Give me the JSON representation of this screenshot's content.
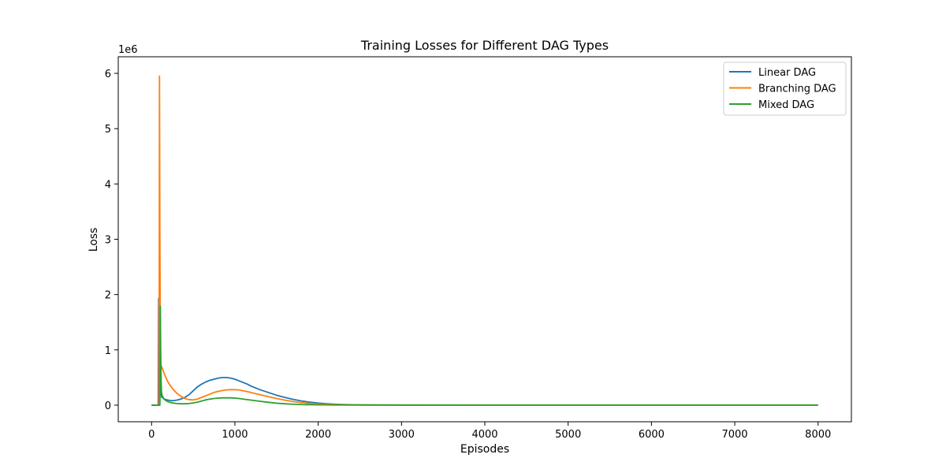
{
  "chart_data": {
    "type": "line",
    "title": "Training Losses for Different DAG Types",
    "xlabel": "Episodes",
    "ylabel": "Loss",
    "y_offset_label": "1e6",
    "y_scale_factor": 1000000,
    "xlim": [
      -400,
      8400
    ],
    "ylim": [
      -300000,
      6300000
    ],
    "xticks": [
      0,
      1000,
      2000,
      3000,
      4000,
      5000,
      6000,
      7000,
      8000
    ],
    "yticks": [
      0,
      1000000,
      2000000,
      3000000,
      4000000,
      5000000,
      6000000
    ],
    "ytick_labels": [
      "0",
      "1",
      "2",
      "3",
      "4",
      "5",
      "6"
    ],
    "grid": false,
    "legend_position": "top-right",
    "series": [
      {
        "name": "Linear DAG",
        "color": "#1f77b4",
        "x": [
          0,
          80,
          85,
          90,
          95,
          100,
          120,
          150,
          200,
          250,
          300,
          350,
          400,
          450,
          500,
          550,
          600,
          650,
          700,
          750,
          800,
          850,
          900,
          950,
          1000,
          1050,
          1100,
          1150,
          1200,
          1300,
          1400,
          1500,
          1600,
          1700,
          1800,
          1900,
          2000,
          2100,
          2200,
          2300,
          2500,
          2700,
          3000,
          4000,
          5000,
          6000,
          7000,
          8000
        ],
        "y": [
          0,
          0,
          1930000,
          1500000,
          800000,
          300000,
          150000,
          110000,
          90000,
          80000,
          90000,
          110000,
          140000,
          190000,
          260000,
          330000,
          380000,
          420000,
          450000,
          470000,
          490000,
          500000,
          500000,
          490000,
          470000,
          440000,
          410000,
          380000,
          340000,
          280000,
          230000,
          180000,
          140000,
          105000,
          75000,
          55000,
          38000,
          26000,
          17000,
          11000,
          5000,
          3000,
          2000,
          1000,
          1000,
          1000,
          1000,
          1000
        ]
      },
      {
        "name": "Branching DAG",
        "color": "#ff7f0e",
        "x": [
          0,
          90,
          95,
          100,
          105,
          110,
          120,
          140,
          160,
          180,
          200,
          250,
          300,
          350,
          400,
          450,
          500,
          550,
          600,
          650,
          700,
          750,
          800,
          850,
          900,
          950,
          1000,
          1050,
          1100,
          1150,
          1200,
          1300,
          1400,
          1500,
          1600,
          1700,
          1800,
          1900,
          2000,
          2200,
          2400,
          2600,
          3000,
          4000,
          5000,
          6000,
          7000,
          8000
        ],
        "y": [
          0,
          0,
          5950000,
          3000000,
          1200000,
          700000,
          700000,
          620000,
          540000,
          470000,
          410000,
          300000,
          220000,
          160000,
          120000,
          100000,
          95000,
          110000,
          140000,
          170000,
          200000,
          230000,
          250000,
          265000,
          275000,
          280000,
          280000,
          275000,
          260000,
          245000,
          225000,
          190000,
          155000,
          120000,
          90000,
          65000,
          45000,
          30000,
          20000,
          10000,
          6000,
          4000,
          3000,
          2000,
          2000,
          2000,
          2000,
          2000
        ]
      },
      {
        "name": "Mixed DAG",
        "color": "#2ca02c",
        "x": [
          0,
          100,
          105,
          110,
          115,
          120,
          130,
          150,
          175,
          200,
          250,
          300,
          350,
          400,
          450,
          500,
          550,
          600,
          650,
          700,
          750,
          800,
          850,
          900,
          950,
          1000,
          1050,
          1100,
          1200,
          1300,
          1400,
          1500,
          1600,
          1700,
          1800,
          2000,
          2200,
          2500,
          3000,
          4000,
          5000,
          6000,
          7000,
          8000
        ],
        "y": [
          0,
          0,
          1790000,
          900000,
          400000,
          220000,
          160000,
          110000,
          80000,
          60000,
          40000,
          30000,
          25000,
          25000,
          30000,
          40000,
          55000,
          75000,
          95000,
          110000,
          120000,
          128000,
          132000,
          133000,
          132000,
          128000,
          120000,
          110000,
          90000,
          70000,
          52000,
          36000,
          25000,
          17000,
          11000,
          6000,
          3000,
          2000,
          1500,
          1000,
          1000,
          1000,
          1000,
          1000
        ]
      }
    ]
  }
}
